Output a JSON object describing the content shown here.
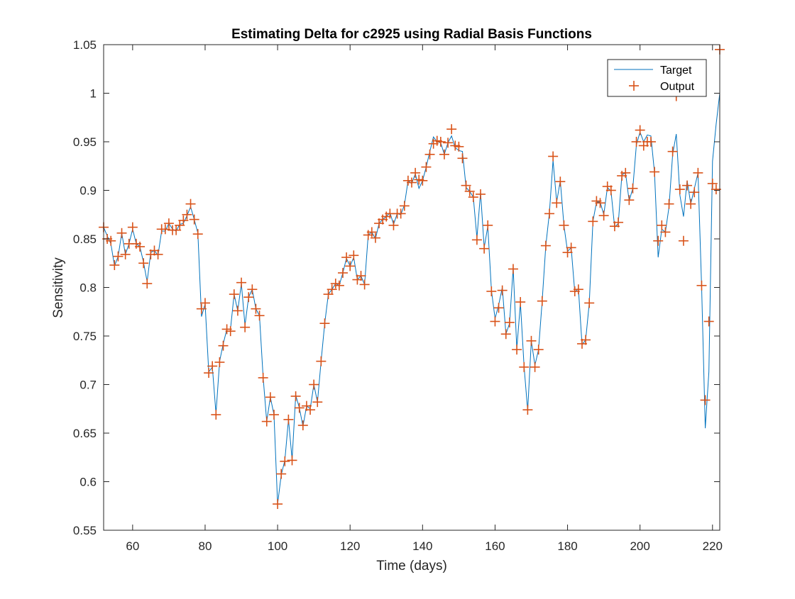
{
  "chart_data": {
    "type": "line",
    "title": "Estimating Delta for c2925 using Radial Basis Functions",
    "xlabel": "Time (days)",
    "ylabel": "Sensitivity",
    "xlim": [
      52,
      222
    ],
    "ylim": [
      0.55,
      1.05
    ],
    "xticks": [
      60,
      80,
      100,
      120,
      140,
      160,
      180,
      200,
      220
    ],
    "xtick_labels": [
      "60",
      "80",
      "100",
      "120",
      "140",
      "160",
      "180",
      "200",
      "220"
    ],
    "yticks": [
      0.55,
      0.6,
      0.65,
      0.7,
      0.75,
      0.8,
      0.85,
      0.9,
      0.95,
      1,
      1.05
    ],
    "ytick_labels": [
      "0.55",
      "0.6",
      "0.65",
      "0.7",
      "0.75",
      "0.8",
      "0.85",
      "0.9",
      "0.95",
      "1",
      "1.05"
    ],
    "grid": false,
    "legend_position": "top-right",
    "x": [
      52,
      53,
      54,
      55,
      56,
      57,
      58,
      59,
      60,
      61,
      62,
      63,
      64,
      65,
      66,
      67,
      68,
      69,
      70,
      71,
      72,
      73,
      74,
      75,
      76,
      77,
      78,
      79,
      80,
      81,
      82,
      83,
      84,
      85,
      86,
      87,
      88,
      89,
      90,
      91,
      92,
      93,
      94,
      95,
      96,
      97,
      98,
      99,
      100,
      101,
      102,
      103,
      104,
      105,
      106,
      107,
      108,
      109,
      110,
      111,
      112,
      113,
      114,
      115,
      116,
      117,
      118,
      119,
      120,
      121,
      122,
      123,
      124,
      125,
      126,
      127,
      128,
      129,
      130,
      131,
      132,
      133,
      134,
      135,
      136,
      137,
      138,
      139,
      140,
      141,
      142,
      143,
      144,
      145,
      146,
      147,
      148,
      149,
      150,
      151,
      152,
      153,
      154,
      155,
      156,
      157,
      158,
      159,
      160,
      161,
      162,
      163,
      164,
      165,
      166,
      167,
      168,
      169,
      170,
      171,
      172,
      173,
      174,
      175,
      176,
      177,
      178,
      179,
      180,
      181,
      182,
      183,
      184,
      185,
      186,
      187,
      188,
      189,
      190,
      191,
      192,
      193,
      194,
      195,
      196,
      197,
      198,
      199,
      200,
      201,
      202,
      203,
      204,
      205,
      206,
      207,
      208,
      209,
      210,
      211,
      212,
      213,
      214,
      215,
      216,
      217,
      218,
      219,
      220,
      221,
      222
    ],
    "series": [
      {
        "name": "Target",
        "style": "line",
        "color": "#0072bd",
        "values": [
          0.862,
          0.853,
          0.845,
          0.822,
          0.832,
          0.856,
          0.834,
          0.845,
          0.86,
          0.845,
          0.842,
          0.826,
          0.806,
          0.836,
          0.838,
          0.833,
          0.858,
          0.858,
          0.866,
          0.86,
          0.858,
          0.865,
          0.866,
          0.874,
          0.883,
          0.87,
          0.856,
          0.77,
          0.783,
          0.713,
          0.718,
          0.67,
          0.724,
          0.742,
          0.757,
          0.757,
          0.793,
          0.776,
          0.804,
          0.761,
          0.79,
          0.798,
          0.778,
          0.771,
          0.708,
          0.662,
          0.687,
          0.669,
          0.577,
          0.607,
          0.622,
          0.664,
          0.623,
          0.689,
          0.676,
          0.657,
          0.678,
          0.675,
          0.7,
          0.682,
          0.724,
          0.763,
          0.793,
          0.798,
          0.804,
          0.802,
          0.815,
          0.83,
          0.822,
          0.831,
          0.808,
          0.812,
          0.803,
          0.854,
          0.857,
          0.85,
          0.866,
          0.87,
          0.873,
          0.877,
          0.865,
          0.876,
          0.875,
          0.885,
          0.91,
          0.907,
          0.917,
          0.902,
          0.91,
          0.924,
          0.94,
          0.955,
          0.95,
          0.949,
          0.937,
          0.949,
          0.956,
          0.944,
          0.941,
          0.94,
          0.903,
          0.899,
          0.893,
          0.851,
          0.898,
          0.841,
          0.863,
          0.797,
          0.768,
          0.782,
          0.8,
          0.752,
          0.763,
          0.82,
          0.737,
          0.784,
          0.719,
          0.673,
          0.745,
          0.72,
          0.736,
          0.786,
          0.843,
          0.877,
          0.931,
          0.888,
          0.91,
          0.864,
          0.837,
          0.841,
          0.795,
          0.799,
          0.741,
          0.746,
          0.784,
          0.868,
          0.888,
          0.888,
          0.875,
          0.903,
          0.899,
          0.862,
          0.866,
          0.916,
          0.918,
          0.889,
          0.902,
          0.947,
          0.96,
          0.95,
          0.957,
          0.956,
          0.918,
          0.831,
          0.86,
          0.857,
          0.883,
          0.937,
          0.958,
          0.895,
          0.873,
          0.91,
          0.886,
          0.902,
          0.918,
          0.8,
          0.655,
          0.713,
          0.93,
          0.968,
          1.0
        ]
      },
      {
        "name": "Output",
        "style": "markers",
        "marker": "+",
        "color": "#d95319",
        "values": [
          0.862,
          0.85,
          0.848,
          0.823,
          0.832,
          0.856,
          0.834,
          0.845,
          0.862,
          0.845,
          0.842,
          0.825,
          0.804,
          0.834,
          0.838,
          0.834,
          0.86,
          0.86,
          0.866,
          0.859,
          0.859,
          0.864,
          0.869,
          0.875,
          0.886,
          0.87,
          0.855,
          0.778,
          0.784,
          0.712,
          0.719,
          0.669,
          0.723,
          0.74,
          0.757,
          0.755,
          0.793,
          0.776,
          0.805,
          0.759,
          0.79,
          0.798,
          0.778,
          0.771,
          0.707,
          0.662,
          0.687,
          0.669,
          0.577,
          0.608,
          0.621,
          0.664,
          0.622,
          0.688,
          0.676,
          0.658,
          0.678,
          0.674,
          0.7,
          0.682,
          0.724,
          0.763,
          0.793,
          0.798,
          0.804,
          0.802,
          0.815,
          0.831,
          0.822,
          0.833,
          0.808,
          0.812,
          0.803,
          0.854,
          0.857,
          0.851,
          0.866,
          0.87,
          0.873,
          0.876,
          0.864,
          0.876,
          0.876,
          0.884,
          0.91,
          0.908,
          0.918,
          0.911,
          0.91,
          0.924,
          0.937,
          0.948,
          0.951,
          0.95,
          0.937,
          0.949,
          0.963,
          0.946,
          0.945,
          0.933,
          0.905,
          0.899,
          0.893,
          0.849,
          0.896,
          0.84,
          0.864,
          0.796,
          0.765,
          0.779,
          0.797,
          0.752,
          0.764,
          0.819,
          0.736,
          0.785,
          0.718,
          0.674,
          0.745,
          0.718,
          0.736,
          0.786,
          0.843,
          0.876,
          0.935,
          0.887,
          0.909,
          0.864,
          0.836,
          0.841,
          0.796,
          0.798,
          0.742,
          0.746,
          0.784,
          0.868,
          0.889,
          0.887,
          0.874,
          0.904,
          0.9,
          0.863,
          0.867,
          0.915,
          0.918,
          0.89,
          0.902,
          0.95,
          0.962,
          0.946,
          0.95,
          0.95,
          0.919,
          0.848,
          0.864,
          0.857,
          0.886,
          0.94,
          0.997,
          0.901,
          0.848,
          0.905,
          0.886,
          0.898,
          0.918,
          0.802,
          0.684,
          0.765,
          0.907,
          0.901,
          1.045
        ]
      }
    ]
  }
}
